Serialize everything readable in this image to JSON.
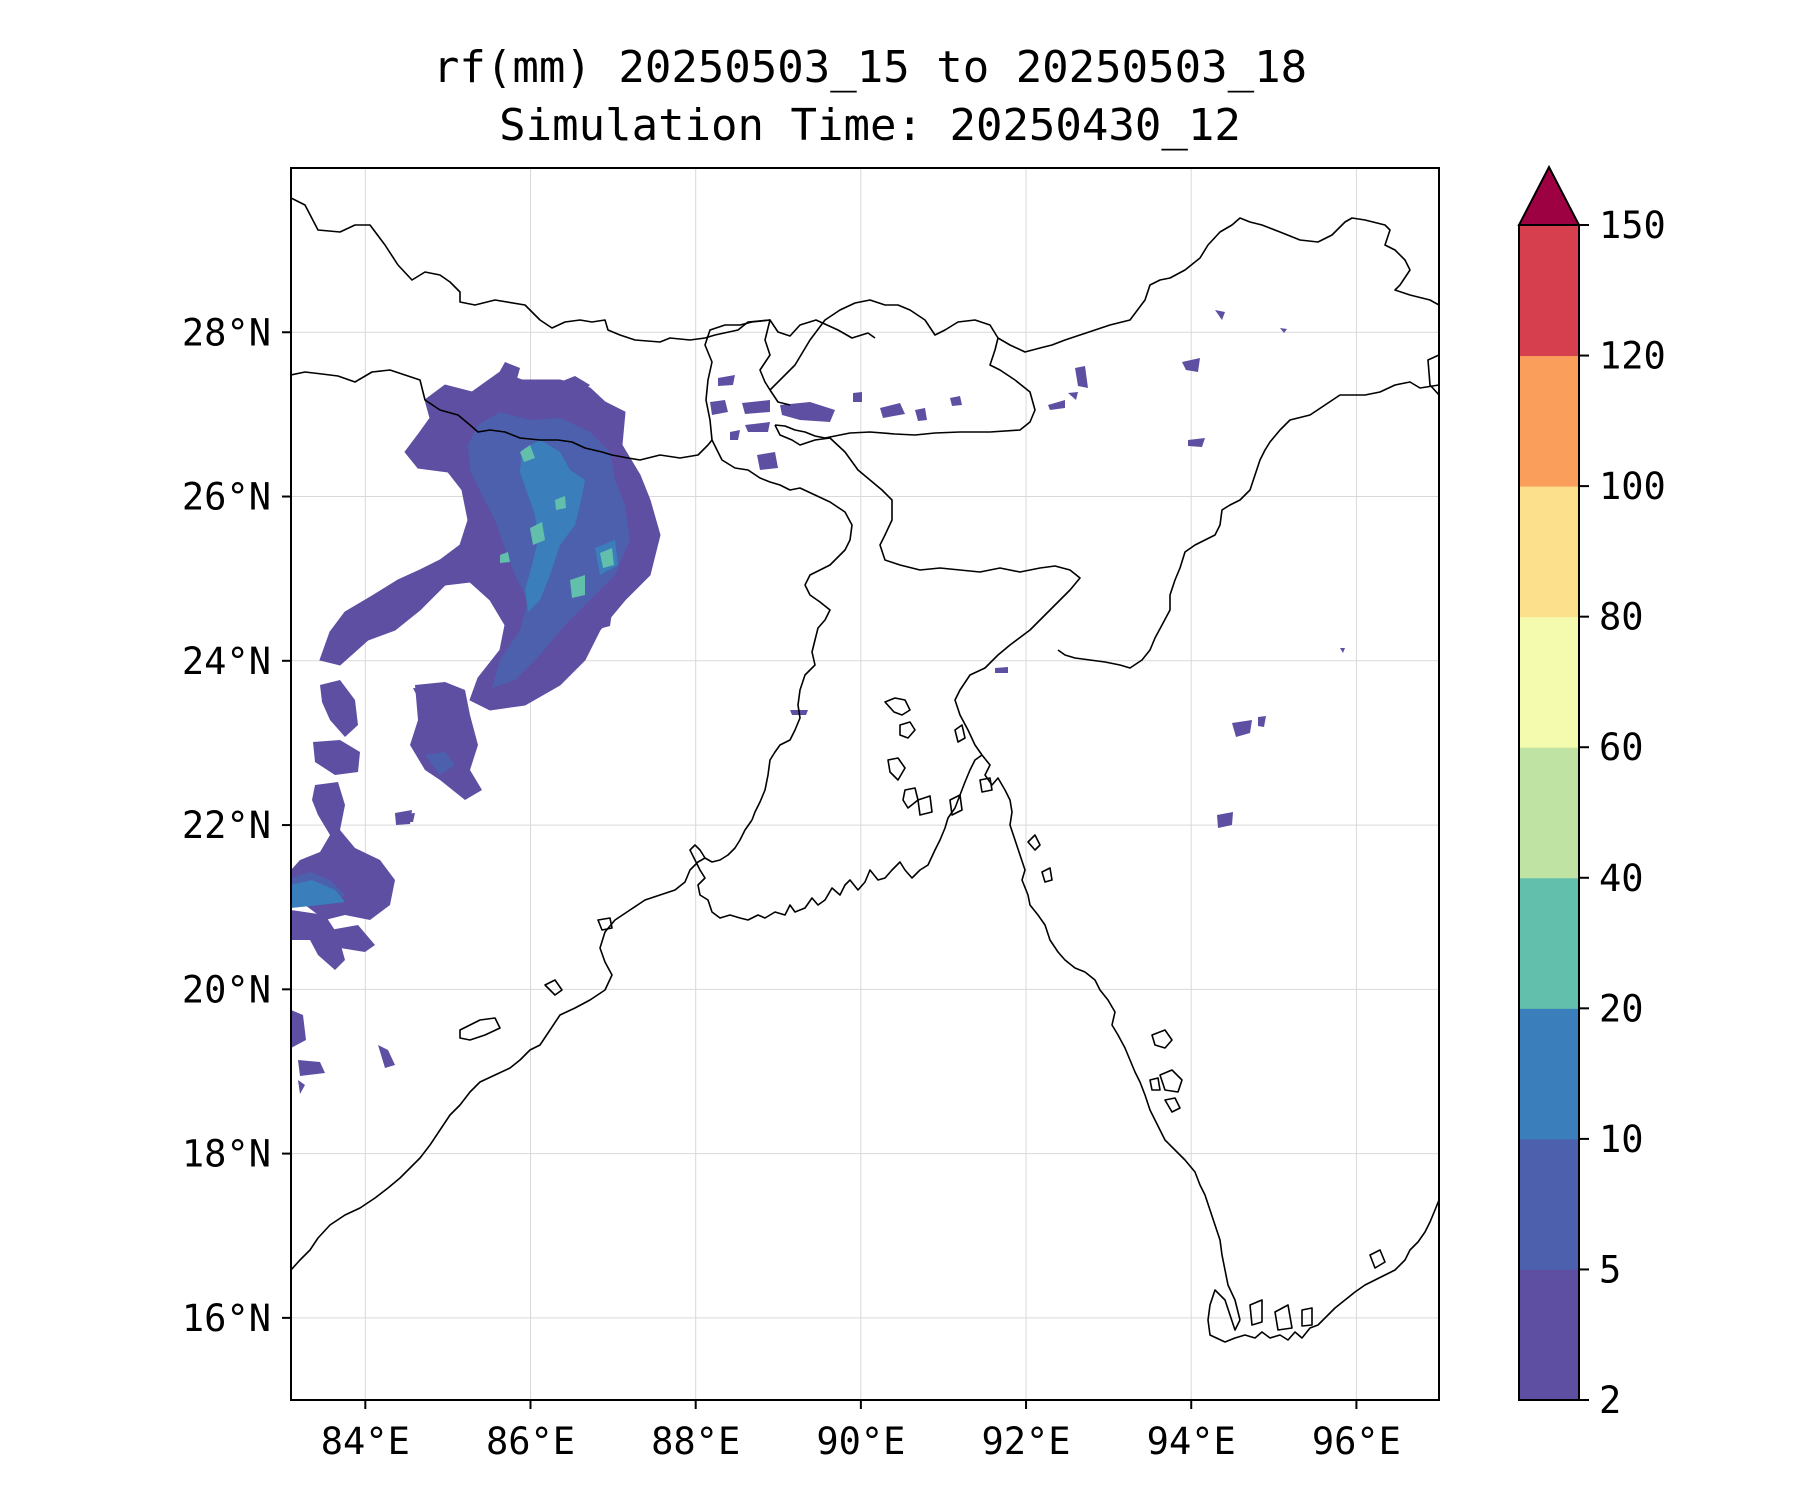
{
  "title": {
    "line1": "rf(mm) 20250503_15 to 20250503_18",
    "line2": "Simulation Time: 20250430_12"
  },
  "map": {
    "lon_range": [
      83.1,
      97.0
    ],
    "lat_range": [
      15.0,
      30.0
    ],
    "lon_ticks": [
      84,
      86,
      88,
      90,
      92,
      94,
      96
    ],
    "lat_ticks": [
      16,
      18,
      20,
      22,
      24,
      26,
      28
    ],
    "lon_labels": [
      "84°E",
      "86°E",
      "88°E",
      "90°E",
      "92°E",
      "94°E",
      "96°E"
    ],
    "lat_labels": [
      "16°N",
      "18°N",
      "20°N",
      "22°N",
      "24°N",
      "26°N",
      "28°N"
    ],
    "gridlines": true
  },
  "colorbar": {
    "levels": [
      "2",
      "5",
      "10",
      "20",
      "40",
      "60",
      "80",
      "100",
      "120",
      "150"
    ],
    "colors": [
      "#5e4fa2",
      "#4d60ad",
      "#3a7fbb",
      "#62bfac",
      "#bfe3a2",
      "#f5fbae",
      "#fde08b",
      "#fa9f5b",
      "#d6404e",
      "#9e0142"
    ],
    "extend": "max"
  },
  "rain_legend_colors": {
    "light": "#5e4fa2",
    "moderate": "#4d60ad",
    "heavy": "#3a7fbb",
    "very_heavy": "#62bfac"
  }
}
